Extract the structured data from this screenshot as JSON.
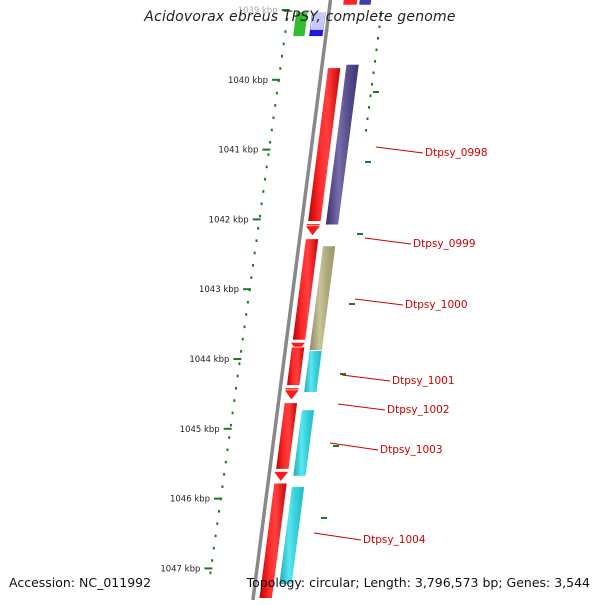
{
  "title": "Acidovorax ebreus TPSY, complete genome",
  "footer": {
    "accession": "Accession: NC_011992",
    "summary": "Topology: circular; Length: 3,796,573 bp; Genes: 3,544"
  },
  "ruler": {
    "unit": "kbp",
    "ticks": [
      {
        "value": 1039,
        "label": "1039 kbp"
      },
      {
        "value": 1040,
        "label": "1040 kbp"
      },
      {
        "value": 1041,
        "label": "1041 kbp"
      },
      {
        "value": 1042,
        "label": "1042 kbp"
      },
      {
        "value": 1043,
        "label": "1043 kbp"
      },
      {
        "value": 1044,
        "label": "1044 kbp"
      },
      {
        "value": 1045,
        "label": "1045 kbp"
      },
      {
        "value": 1046,
        "label": "1046 kbp"
      },
      {
        "value": 1047,
        "label": "1047 kbp"
      }
    ]
  },
  "genes": [
    {
      "label": "Dtpsy_0998",
      "start": 1039.8,
      "end": 1042.1,
      "cog_color": "#4a3f8f"
    },
    {
      "label": "Dtpsy_0999",
      "start": 1042.2,
      "end": 1042.35,
      "cog_color": ""
    },
    {
      "label": "Dtpsy_1000",
      "start": 1042.4,
      "end": 1043.9,
      "cog_color": "#b8b27a"
    },
    {
      "label": "Dtpsy_1001",
      "start": 1043.9,
      "end": 1044.5,
      "cog_color": "#22e0ee"
    },
    {
      "label": "Dtpsy_1002",
      "start": 1044.55,
      "end": 1044.7,
      "cog_color": ""
    },
    {
      "label": "Dtpsy_1003",
      "start": 1044.75,
      "end": 1045.7,
      "cog_color": "#22e0ee"
    },
    {
      "label": "Dtpsy_1004",
      "start": 1045.85,
      "end": 1047.25,
      "cog_color": "#22e0ee"
    }
  ],
  "top_fragments": [
    {
      "name": "green-fragment",
      "color": "#33bb33"
    },
    {
      "name": "blue-fragment",
      "color": "#1a1ae0"
    }
  ],
  "colors": {
    "strand": "#ee1111",
    "backbone": "#888888",
    "tick": "#1f7a1f",
    "label": "#cc0000"
  }
}
